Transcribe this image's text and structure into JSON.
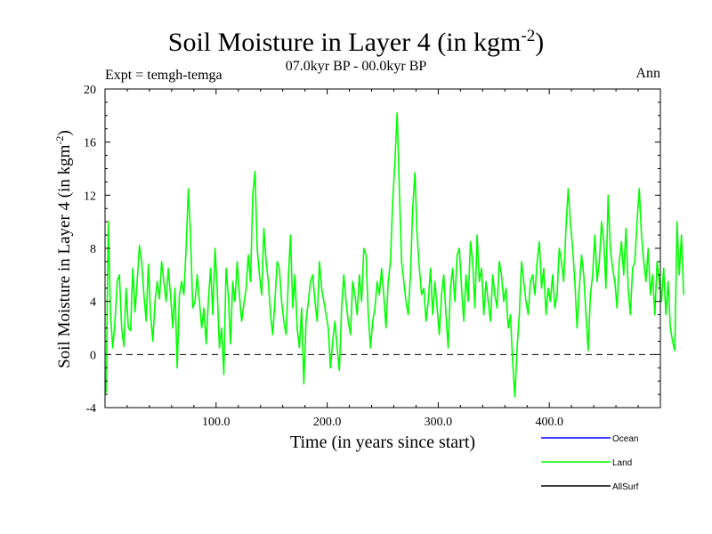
{
  "chart_data": {
    "type": "line",
    "title": "Soil Moisture in Layer 4 (in kgm",
    "title_exponent": "-2",
    "title_close": ")",
    "subtitle": "07.0kyr BP - 00.0kyr BP",
    "experiment_label": "Expt = temgh-temga",
    "season_label": "Ann",
    "xlabel": "Time (in years since start)",
    "ylabel": "Soil Moisture in Layer 4 (in kgm",
    "ylabel_exponent": "-2",
    "ylabel_close": ")",
    "xlim": [
      0,
      500
    ],
    "ylim": [
      -4,
      20
    ],
    "x_ticks": [
      100,
      200,
      300,
      400
    ],
    "x_tick_labels": [
      "100.0",
      "200.0",
      "300.0",
      "400.0"
    ],
    "y_ticks": [
      -4,
      0,
      4,
      8,
      12,
      16,
      20
    ],
    "y_tick_labels": [
      "-4",
      "0",
      "4",
      "8",
      "12",
      "16",
      "20"
    ],
    "reference_line": 0,
    "legend_position": "bottom-right, below plot",
    "series": [
      {
        "name": "Ocean",
        "color": "#0000ff",
        "values": []
      },
      {
        "name": "Land",
        "color": "#00ff00",
        "x_start": 1,
        "x_step": 2,
        "values": [
          -2.9,
          10.0,
          3.0,
          0.5,
          2.5,
          5.5,
          6.0,
          2.0,
          0.6,
          5.0,
          2.0,
          1.8,
          6.5,
          3.2,
          5.6,
          8.2,
          7.0,
          4.5,
          2.5,
          6.8,
          3.0,
          1.0,
          4.0,
          5.5,
          4.2,
          7.0,
          5.5,
          4.0,
          6.5,
          4.5,
          2.0,
          5.0,
          -1.0,
          4.5,
          5.5,
          4.5,
          8.0,
          12.5,
          9.0,
          3.5,
          4.0,
          6.0,
          4.0,
          2.0,
          3.5,
          0.8,
          4.0,
          6.5,
          3.0,
          8.0,
          5.0,
          0.5,
          2.0,
          -1.5,
          6.5,
          4.5,
          0.8,
          5.5,
          4.0,
          7.0,
          4.5,
          2.5,
          3.8,
          5.0,
          7.5,
          5.5,
          12.0,
          13.8,
          8.0,
          6.0,
          4.5,
          9.5,
          7.0,
          5.5,
          3.0,
          1.5,
          4.0,
          7.0,
          6.5,
          4.0,
          2.5,
          1.5,
          5.5,
          9.0,
          3.5,
          6.0,
          2.0,
          0.5,
          3.5,
          -2.2,
          2.5,
          4.0,
          5.5,
          6.0,
          4.0,
          2.5,
          7.0,
          5.0,
          4.0,
          3.0,
          2.0,
          -1.0,
          1.0,
          2.5,
          0.5,
          -1.2,
          3.5,
          6.0,
          4.0,
          2.5,
          1.5,
          5.5,
          4.5,
          3.0,
          6.0,
          4.0,
          8.0,
          7.5,
          3.0,
          0.5,
          2.5,
          3.5,
          5.5,
          4.5,
          6.5,
          4.5,
          2.0,
          5.5,
          7.0,
          11.5,
          14.5,
          18.2,
          12.5,
          7.0,
          5.5,
          4.0,
          3.0,
          6.0,
          11.0,
          13.7,
          9.0,
          6.5,
          4.5,
          5.0,
          2.5,
          4.0,
          6.5,
          3.0,
          5.5,
          3.5,
          1.5,
          4.5,
          6.0,
          3.0,
          0.5,
          5.0,
          6.5,
          4.0,
          7.5,
          8.0,
          5.0,
          2.5,
          6.0,
          4.0,
          8.5,
          7.0,
          3.5,
          9.0,
          5.5,
          6.5,
          3.0,
          5.5,
          4.0,
          2.5,
          6.0,
          4.5,
          3.5,
          7.0,
          6.0,
          4.0,
          5.0,
          2.0,
          3.0,
          -0.5,
          -3.2,
          0.5,
          3.0,
          7.0,
          5.5,
          4.0,
          3.0,
          5.5,
          6.0,
          4.5,
          7.0,
          8.5,
          5.0,
          6.5,
          3.0,
          5.0,
          4.0,
          6.0,
          3.5,
          4.5,
          8.0,
          7.0,
          5.5,
          9.5,
          12.5,
          10.0,
          8.0,
          5.5,
          2.0,
          5.0,
          7.5,
          6.0,
          3.0,
          0.3,
          4.5,
          6.0,
          9.0,
          5.5,
          7.0,
          10.0,
          8.5,
          5.0,
          12.0,
          8.0,
          6.5,
          5.5,
          3.5,
          7.0,
          8.5,
          6.0,
          9.5,
          5.0,
          3.0,
          6.5,
          7.0,
          10.0,
          12.5,
          9.0,
          7.0,
          5.5,
          8.0,
          4.5,
          6.0,
          3.0,
          7.0,
          5.5,
          4.0,
          6.5,
          3.0,
          5.5,
          2.0,
          1.0,
          0.3,
          10.0,
          6.0,
          9.0,
          4.5
        ]
      },
      {
        "name": "AllSurf",
        "color": "#000000",
        "values": []
      }
    ]
  }
}
